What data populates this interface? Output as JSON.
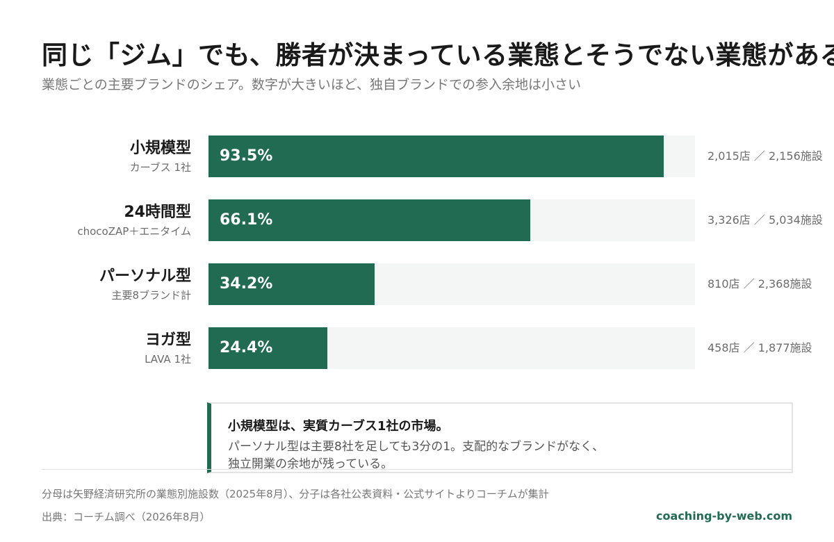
{
  "header": {
    "title": "同じ「ジム」でも、勝者が決まっている業態とそうでない業態がある",
    "subtitle": "業態ごとの主要ブランドのシェア。数字が大きいほど、独自ブランドでの参入余地は小さい"
  },
  "chart_data": {
    "type": "bar",
    "orientation": "horizontal",
    "xlim": [
      0,
      100
    ],
    "categories": [
      "小規模型",
      "24時間型",
      "パーソナル型",
      "ヨガ型"
    ],
    "category_subtitles": [
      "カーブス 1社",
      "chocoZAP＋エニタイム",
      "主要8ブランド計",
      "LAVA 1社"
    ],
    "values": [
      93.5,
      66.1,
      34.2,
      24.4
    ],
    "value_labels": [
      "93.5%",
      "66.1%",
      "34.2%",
      "24.4%"
    ],
    "count_labels": [
      "2,015店 ／ 2,156施設",
      "3,326店 ／ 5,034施設",
      "810店 ／ 2,368施設",
      "458店 ／ 1,877施設"
    ],
    "colors": {
      "bar": "#206b52",
      "track": "#f4f6f5"
    }
  },
  "note": {
    "heading": "小規模型は、実質カーブス1社の市場。",
    "body_lines": [
      "パーソナル型は主要8社を足しても3分の1。支配的なブランドがなく、",
      "独立開業の余地が残っている。"
    ]
  },
  "footer": {
    "footnote": "分母は矢野経済研究所の業態別施設数（2025年8月）、分子は各社公表資料・公式サイトよりコーチムが集計",
    "source": "出典：コーチム調べ（2026年8月）",
    "site": "coaching-by-web.com"
  }
}
